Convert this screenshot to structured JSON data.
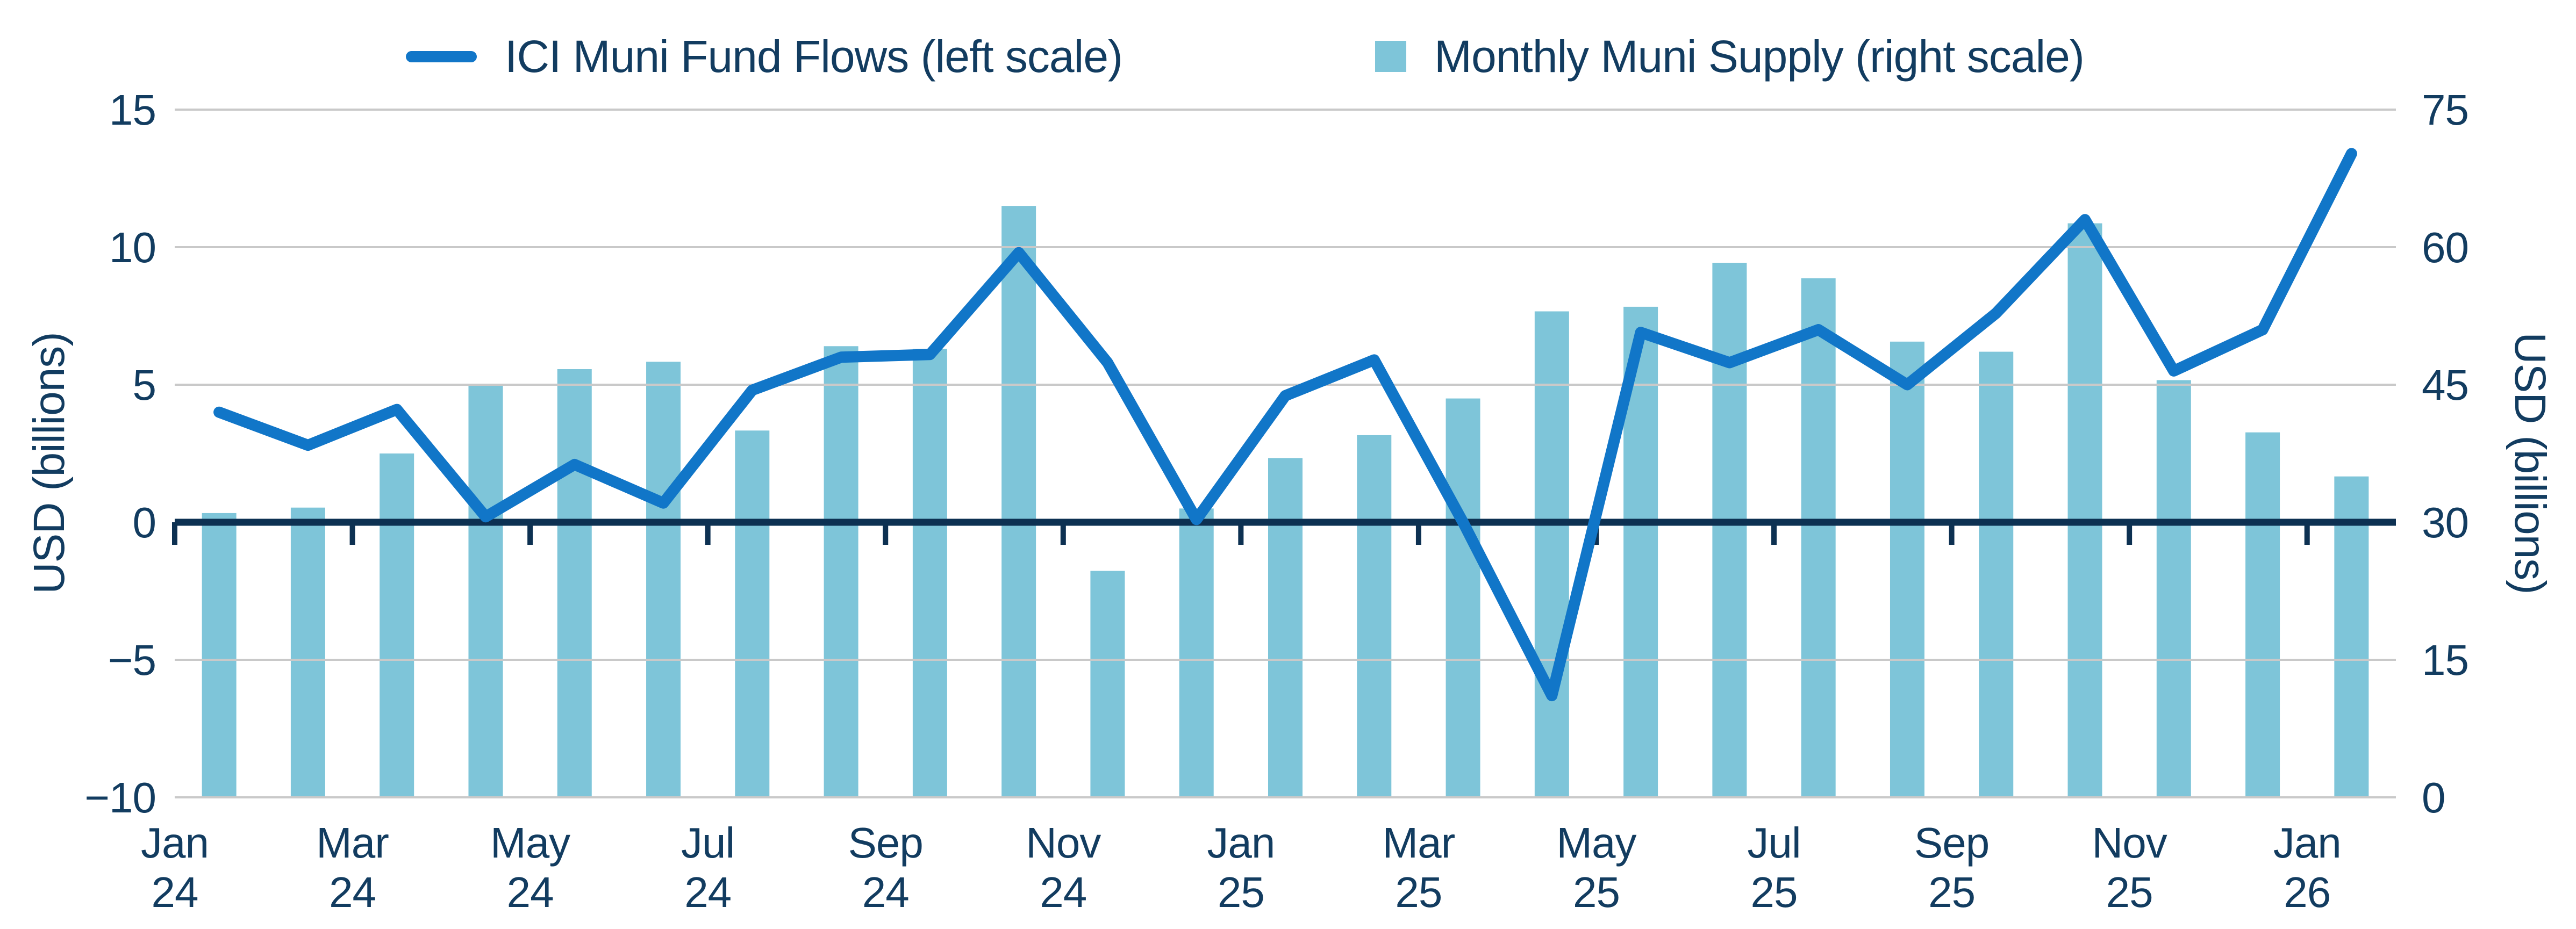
{
  "legend": {
    "items": [
      {
        "label": "ICI Muni Fund Flows (left scale)",
        "marker": "line-swatch",
        "color": "#1176C8"
      },
      {
        "label": "Monthly Muni Supply (right scale)",
        "marker": "square-swatch",
        "color": "#7EC5D9"
      }
    ]
  },
  "colors": {
    "line_series": "#1176C8",
    "bar_series": "#7EC5D9",
    "axis_line": "#0D3152",
    "gridline": "#C9C9C9",
    "text": "#123C60",
    "background": "#FFFFFF"
  },
  "chart_data": {
    "type": "combo",
    "categories": [
      "Jan 24",
      "Feb 24",
      "Mar 24",
      "Apr 24",
      "May 24",
      "Jun 24",
      "Jul 24",
      "Aug 24",
      "Sep 24",
      "Oct 24",
      "Nov 24",
      "Dec 24",
      "Jan 25",
      "Feb 25",
      "Mar 25",
      "Apr 25",
      "May 25",
      "Jun 25",
      "Jul 25",
      "Aug 25",
      "Sep 25",
      "Oct 25",
      "Nov 25",
      "Dec 25",
      "Jan 26"
    ],
    "series": [
      {
        "name": "ICI Muni Fund Flows (left scale)",
        "type": "line",
        "axis": "left",
        "color": "#1176C8",
        "values": [
          4.0,
          2.8,
          4.1,
          0.2,
          2.1,
          0.7,
          4.8,
          6.0,
          6.1,
          9.8,
          5.8,
          0.1,
          4.6,
          5.9,
          0.0,
          -6.3,
          6.9,
          5.8,
          7.0,
          5.0,
          7.6,
          11.0,
          5.5,
          7.0,
          13.4
        ]
      },
      {
        "name": "Monthly Muni Supply (right scale)",
        "type": "bar",
        "axis": "right",
        "color": "#7EC5D9",
        "values": [
          31,
          31.6,
          37.5,
          45,
          46.7,
          47.5,
          40,
          49.2,
          48.9,
          64.5,
          24.7,
          31.5,
          37,
          39.5,
          43.5,
          53,
          53.5,
          58.3,
          56.6,
          49.7,
          48.6,
          62.6,
          45.5,
          39.8,
          35
        ]
      }
    ],
    "left_axis": {
      "title": "USD (billions)",
      "min": -10,
      "max": 15,
      "ticks": [
        15,
        10,
        5,
        0,
        -5,
        -10
      ]
    },
    "right_axis": {
      "title": "USD (billions)",
      "min": 0,
      "max": 75,
      "ticks": [
        75,
        60,
        45,
        30,
        15,
        0
      ]
    },
    "x_tick_labels": [
      "Jan 24",
      "Mar 24",
      "May 24",
      "Jul 24",
      "Sep 24",
      "Nov 24",
      "Jan 25",
      "Mar 25",
      "May 25",
      "Jul 25",
      "Sep 25",
      "Nov 25",
      "Jan 26"
    ],
    "grid": true,
    "legend_position": "top",
    "title": "",
    "xlabel": ""
  }
}
